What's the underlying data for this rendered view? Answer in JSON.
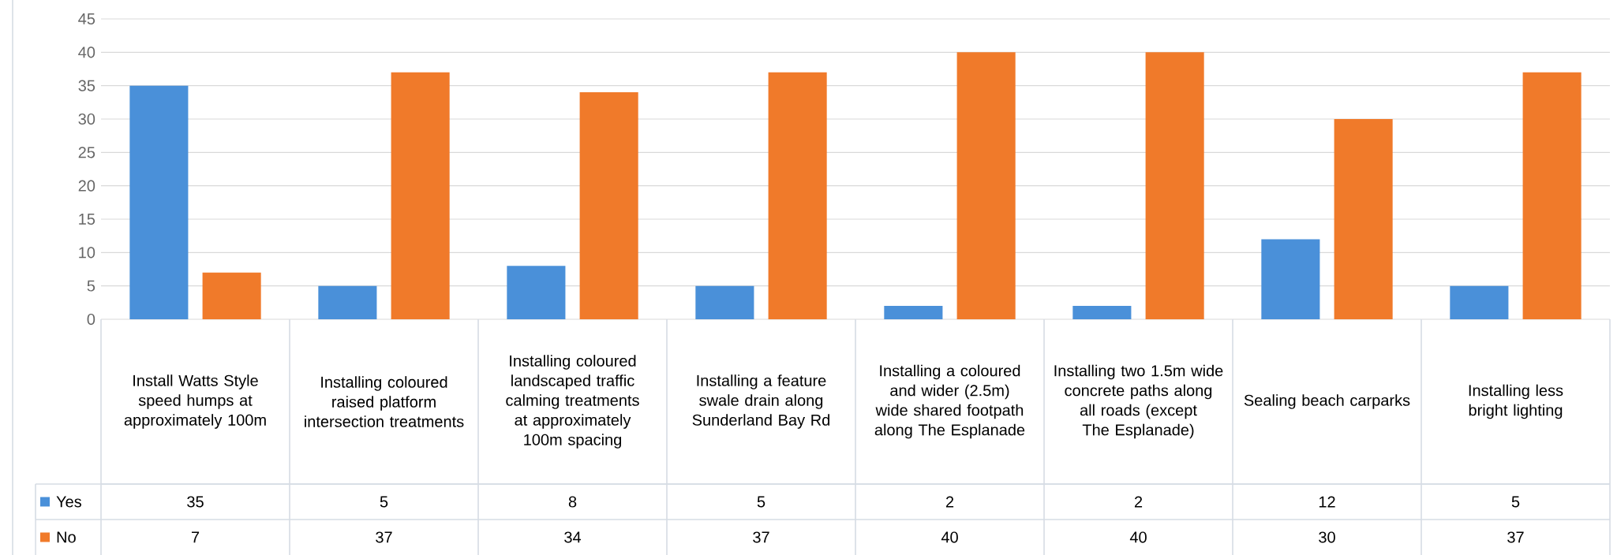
{
  "chart_data": {
    "type": "bar",
    "categories": [
      "Install Watts Style speed humps at approximately 100m",
      "Installing coloured raised platform intersection treatments",
      "Installing coloured landscaped traffic calming treatments at approximately 100m spacing",
      "Installing a feature swale drain along Sunderland Bay Rd",
      "Installing a coloured and wider (2.5m) wide shared footpath along The Esplanade",
      "Installing two 1.5m wide concrete paths along all roads (except The Esplanade)",
      "Sealing beach carparks",
      "Installing less bright lighting"
    ],
    "series": [
      {
        "name": "Yes",
        "color": "#4a90d9",
        "values": [
          35,
          5,
          8,
          5,
          2,
          2,
          12,
          5
        ]
      },
      {
        "name": "No",
        "color": "#f07a2a",
        "values": [
          7,
          37,
          34,
          37,
          40,
          40,
          30,
          37
        ]
      }
    ],
    "ylim": [
      0,
      45
    ],
    "yticks": [
      0,
      5,
      10,
      15,
      20,
      25,
      30,
      35,
      40,
      45
    ],
    "grid": "y",
    "data_labels": true,
    "legend": "bottom left"
  }
}
